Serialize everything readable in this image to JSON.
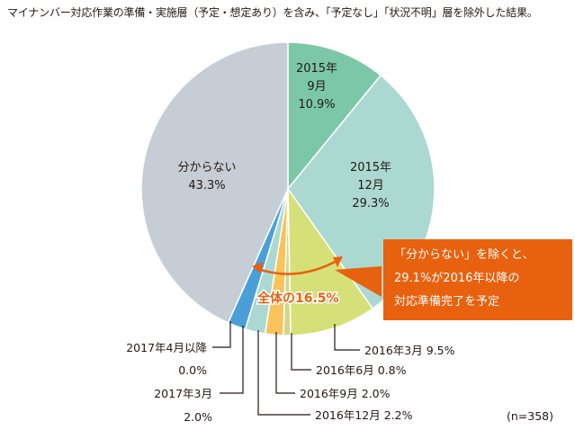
{
  "note": "マイナンバー対応作業の準備・実施層（予定・想定あり）を含み、「予定なし」「状況不明」層を除外した結果。",
  "sample_size": "(n=358)",
  "callout": {
    "lines": [
      "「分からない」を除くと、",
      "29.1%が2016年以降の",
      "対応準備完了を予定"
    ],
    "bracket_label": "全体の16.5%"
  },
  "chart_data": {
    "type": "pie",
    "start_angle_deg": 0,
    "direction": "clockwise",
    "slices": [
      {
        "key": "s2015_9",
        "label_lines": [
          "2015年",
          "9月",
          "10.9%"
        ],
        "value": 10.9,
        "color": "#7bc7a7",
        "placement": "inside"
      },
      {
        "key": "s2015_12",
        "label_lines": [
          "2015年",
          "12月",
          "29.3%"
        ],
        "value": 29.3,
        "color": "#abd9d1",
        "placement": "inside"
      },
      {
        "key": "s2016_3",
        "label": "2016年3月 9.5%",
        "value": 9.5,
        "color": "#d6e079",
        "placement": "leader"
      },
      {
        "key": "s2016_6",
        "label": "2016年6月 0.8%",
        "value": 0.8,
        "color": "#cfd88a",
        "placement": "leader"
      },
      {
        "key": "s2016_9",
        "label": "2016年9月 2.0%",
        "value": 2.0,
        "color": "#f8c35a",
        "placement": "leader"
      },
      {
        "key": "s2016_12",
        "label": "2016年12月 2.2%",
        "value": 2.2,
        "color": "#abd9d1",
        "placement": "leader"
      },
      {
        "key": "s2017_3",
        "label_lines": [
          "2017年3月",
          "2.0%"
        ],
        "value": 2.0,
        "color": "#4a9fd8",
        "placement": "leader"
      },
      {
        "key": "s2017_4",
        "label_lines": [
          "2017年4月以降",
          "0.0%"
        ],
        "value": 0.0,
        "color": "#4a9fd8",
        "placement": "leader"
      },
      {
        "key": "unknown",
        "label_lines": [
          "分からない",
          "43.3%"
        ],
        "value": 43.3,
        "color": "#c7cdd4",
        "placement": "inside"
      }
    ]
  }
}
